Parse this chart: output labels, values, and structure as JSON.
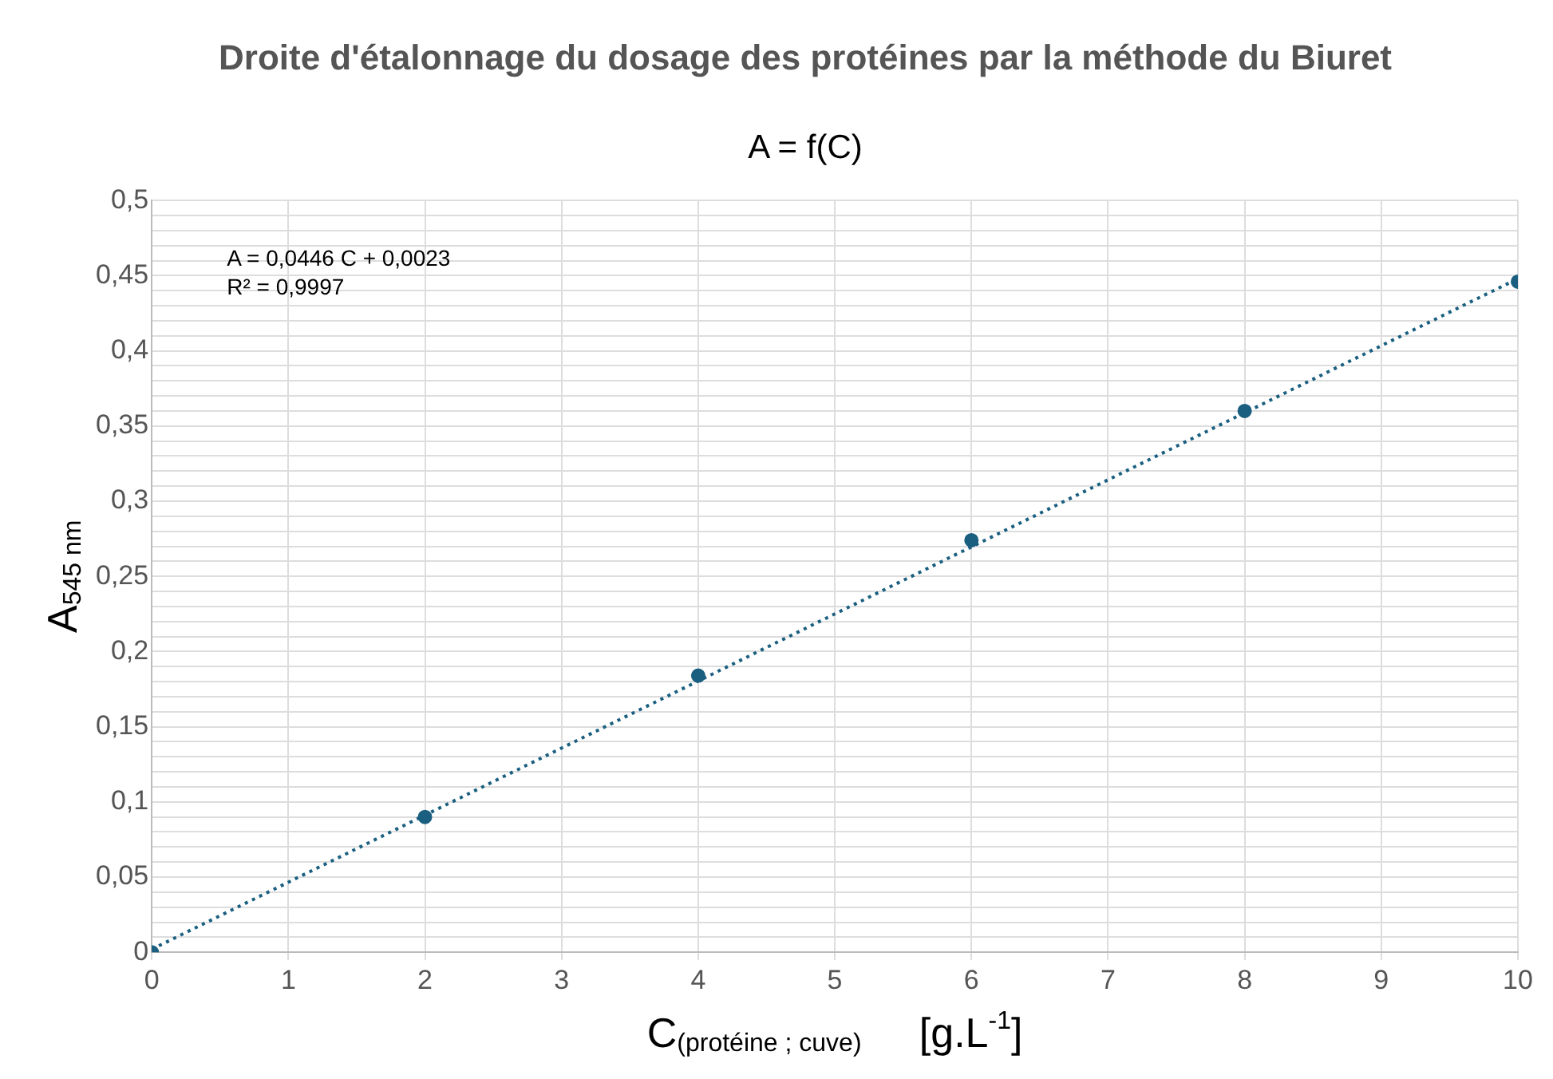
{
  "chart_data": {
    "type": "scatter",
    "title": "Droite d'étalonnage du dosage des protéines par la méthode du Biuret",
    "subtitle": "A = f(C)",
    "xlabel": "C$_{(protéine ; cuve)}$     [g.L$^{-1}$]",
    "ylabel": "A$_{545 nm}$",
    "x": [
      0,
      2,
      4,
      6,
      8,
      10
    ],
    "series": [
      {
        "type": "scatter",
        "color": "#1a5f80",
        "values": [
          0,
          0.09,
          0.184,
          0.274,
          0.36,
          0.446
        ],
        "marker": "circle"
      },
      {
        "type": "line",
        "color": "#1a5f80",
        "x": [
          0,
          10
        ],
        "values": [
          0.002,
          0.448
        ],
        "marker": "none",
        "line_style": "dotted"
      }
    ],
    "annotations": [
      "A = 0,0446 C + 0,0023",
      "R² = 0,9997"
    ],
    "xlim": [
      0,
      10
    ],
    "xticks": [
      0,
      1,
      2,
      3,
      4,
      5,
      6,
      7,
      8,
      9,
      10
    ],
    "ylim": [
      0,
      0.5
    ],
    "yticks": [
      {
        "value": 0,
        "label": "0"
      },
      {
        "value": 0.01,
        "label": null
      },
      {
        "value": 0.02,
        "label": null
      },
      {
        "value": 0.03,
        "label": null
      },
      {
        "value": 0.04,
        "label": null
      },
      {
        "value": 0.05,
        "label": "0,05"
      },
      {
        "value": 0.06,
        "label": null
      },
      {
        "value": 0.07,
        "label": null
      },
      {
        "value": 0.08,
        "label": null
      },
      {
        "value": 0.09,
        "label": null
      },
      {
        "value": 0.1,
        "label": "0,1"
      },
      {
        "value": 0.11,
        "label": null
      },
      {
        "value": 0.12,
        "label": null
      },
      {
        "value": 0.13,
        "label": null
      },
      {
        "value": 0.14,
        "label": null
      },
      {
        "value": 0.15,
        "label": "0,15"
      },
      {
        "value": 0.16,
        "label": null
      },
      {
        "value": 0.17,
        "label": null
      },
      {
        "value": 0.18,
        "label": null
      },
      {
        "value": 0.19,
        "label": null
      },
      {
        "value": 0.2,
        "label": "0,2"
      },
      {
        "value": 0.21,
        "label": null
      },
      {
        "value": 0.22,
        "label": null
      },
      {
        "value": 0.23,
        "label": null
      },
      {
        "value": 0.24,
        "label": null
      },
      {
        "value": 0.25,
        "label": "0,25"
      },
      {
        "value": 0.26,
        "label": null
      },
      {
        "value": 0.27,
        "label": null
      },
      {
        "value": 0.28,
        "label": null
      },
      {
        "value": 0.29,
        "label": null
      },
      {
        "value": 0.3,
        "label": "0,3"
      },
      {
        "value": 0.31,
        "label": null
      },
      {
        "value": 0.32,
        "label": null
      },
      {
        "value": 0.33,
        "label": null
      },
      {
        "value": 0.34,
        "label": null
      },
      {
        "value": 0.35,
        "label": "0,35"
      },
      {
        "value": 0.36,
        "label": null
      },
      {
        "value": 0.37,
        "label": null
      },
      {
        "value": 0.38,
        "label": null
      },
      {
        "value": 0.39,
        "label": null
      },
      {
        "value": 0.4,
        "label": "0,4"
      },
      {
        "value": 0.41,
        "label": null
      },
      {
        "value": 0.42,
        "label": null
      },
      {
        "value": 0.43,
        "label": null
      },
      {
        "value": 0.44,
        "label": null
      },
      {
        "value": 0.45,
        "label": "0,45"
      },
      {
        "value": 0.46,
        "label": null
      },
      {
        "value": 0.47,
        "label": null
      },
      {
        "value": 0.48,
        "label": null
      },
      {
        "value": 0.49,
        "label": null
      },
      {
        "value": 0.5,
        "label": "0,5"
      }
    ],
    "grid": true,
    "legend": false
  }
}
